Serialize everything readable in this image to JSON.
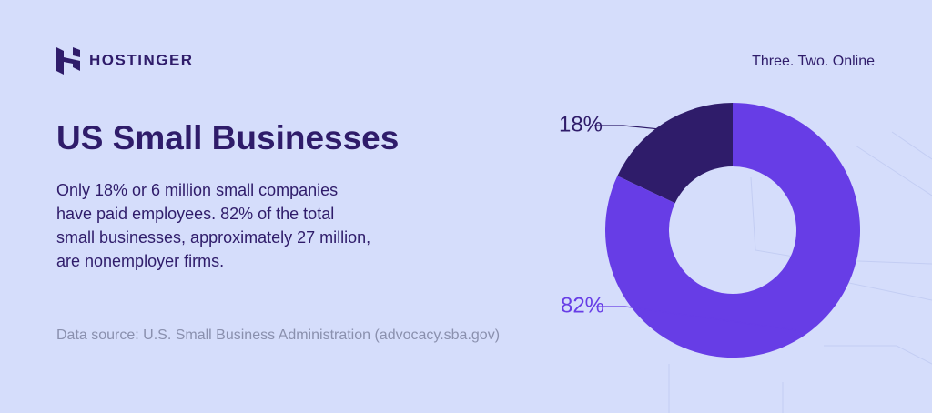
{
  "brand": "HOSTINGER",
  "tagline": "Three. Two. Online",
  "chart_data": {
    "type": "donut",
    "title": "US Small Businesses",
    "description": [
      "Only 18% or 6 million small companies",
      "have paid employees. 82% of the total",
      "small businesses, approximately 27 million,",
      "are nonemployer firms."
    ],
    "source": "Data source: U.S. Small Business Administration (advocacy.sba.gov)",
    "values": [
      18,
      82
    ],
    "value_labels": [
      "18%",
      "82%"
    ],
    "colors": [
      "#2f1c6a",
      "#673de6"
    ]
  }
}
